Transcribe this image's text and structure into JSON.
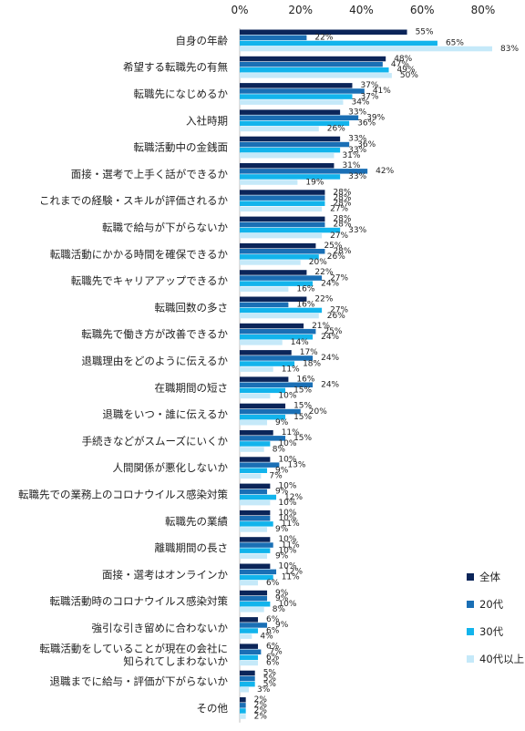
{
  "chart_data": {
    "type": "bar",
    "orientation": "horizontal",
    "title": "",
    "xlabel": "",
    "ylabel": "",
    "xlim": [
      0,
      80
    ],
    "x_ticks": [
      "0%",
      "20%",
      "40%",
      "60%",
      "80%"
    ],
    "value_suffix": "%",
    "grid": false,
    "legend_position": "bottom-right",
    "categories": [
      "自身の年齢",
      "希望する転職先の有無",
      "転職先になじめるか",
      "入社時期",
      "転職活動中の金銭面",
      "面接・選考で上手く話ができるか",
      "これまでの経験・スキルが評価されるか",
      "転職で給与が下がらないか",
      "転職活動にかかる時間を確保できるか",
      "転職先でキャリアアップできるか",
      "転職回数の多さ",
      "転職先で働き方が改善できるか",
      "退職理由をどのように伝えるか",
      "在職期間の短さ",
      "退職をいつ・誰に伝えるか",
      "手続きなどがスムーズにいくか",
      "人間関係が悪化しないか",
      "転職先での業務上のコロナウイルス感染対策",
      "転職先の業績",
      "離職期間の長さ",
      "面接・選考はオンラインか",
      "転職活動時のコロナウイルス感染対策",
      "強引な引き留めに合わないか",
      "転職活動をしていることが現在の会社に\n知られてしまわないか",
      "退職までに給与・評価が下がらないか",
      "その他"
    ],
    "series": [
      {
        "name": "全体",
        "color": "#0b2559",
        "values": [
          55,
          48,
          37,
          33,
          33,
          31,
          28,
          28,
          25,
          22,
          22,
          21,
          17,
          16,
          15,
          11,
          10,
          10,
          10,
          10,
          10,
          9,
          6,
          6,
          5,
          2
        ]
      },
      {
        "name": "20代",
        "color": "#1a6fb5",
        "values": [
          22,
          47,
          41,
          39,
          36,
          42,
          28,
          28,
          28,
          27,
          16,
          25,
          24,
          24,
          20,
          15,
          13,
          9,
          10,
          11,
          12,
          9,
          9,
          7,
          5,
          2
        ]
      },
      {
        "name": "30代",
        "color": "#12b4ec",
        "values": [
          65,
          49,
          37,
          36,
          33,
          33,
          28,
          33,
          26,
          24,
          27,
          24,
          18,
          15,
          15,
          10,
          9,
          12,
          11,
          10,
          11,
          10,
          6,
          6,
          5,
          2
        ]
      },
      {
        "name": "40代以上",
        "color": "#c5e9f9",
        "values": [
          83,
          50,
          34,
          26,
          31,
          19,
          27,
          27,
          20,
          16,
          26,
          14,
          11,
          10,
          9,
          8,
          7,
          10,
          9,
          9,
          6,
          8,
          4,
          6,
          3,
          2
        ]
      }
    ]
  }
}
